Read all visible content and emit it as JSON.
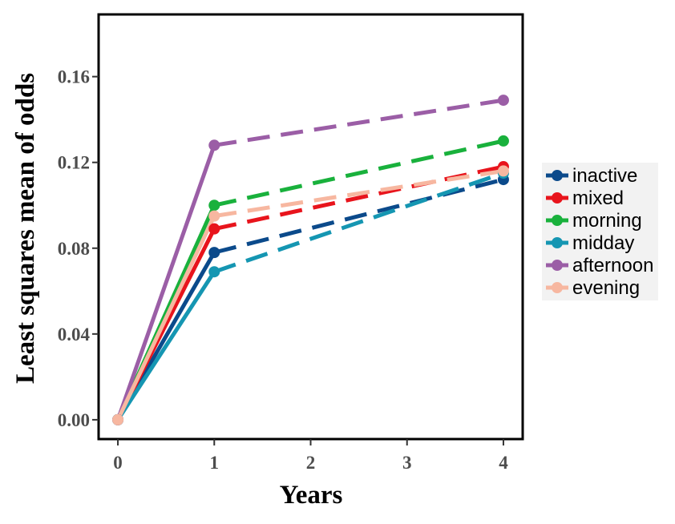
{
  "chart_data": {
    "type": "line",
    "title": "",
    "xlabel": "Years",
    "ylabel": "Least squares mean of odds",
    "xlim": [
      -0.2,
      4.2
    ],
    "ylim": [
      -0.009,
      0.189
    ],
    "x_ticks": [
      "0",
      "1",
      "2",
      "3",
      "4"
    ],
    "y_ticks": [
      "0.00",
      "0.04",
      "0.08",
      "0.12",
      "0.16"
    ],
    "x": [
      0,
      1,
      4
    ],
    "line_styles": {
      "0-1": "solid",
      "1-4": "dashed"
    },
    "legend_position": "right",
    "series": [
      {
        "name": "inactive",
        "color": "#0b4a8b",
        "values": [
          0,
          0.078,
          0.112
        ]
      },
      {
        "name": "mixed",
        "color": "#e8141c",
        "values": [
          0,
          0.089,
          0.118
        ]
      },
      {
        "name": "morning",
        "color": "#19b13c",
        "values": [
          0,
          0.1,
          0.13
        ]
      },
      {
        "name": "midday",
        "color": "#1596b2",
        "values": [
          0,
          0.069,
          0.115
        ]
      },
      {
        "name": "afternoon",
        "color": "#9b5ea6",
        "values": [
          0,
          0.128,
          0.149
        ]
      },
      {
        "name": "evening",
        "color": "#f7b7a0",
        "values": [
          0,
          0.095,
          0.116
        ]
      }
    ]
  }
}
